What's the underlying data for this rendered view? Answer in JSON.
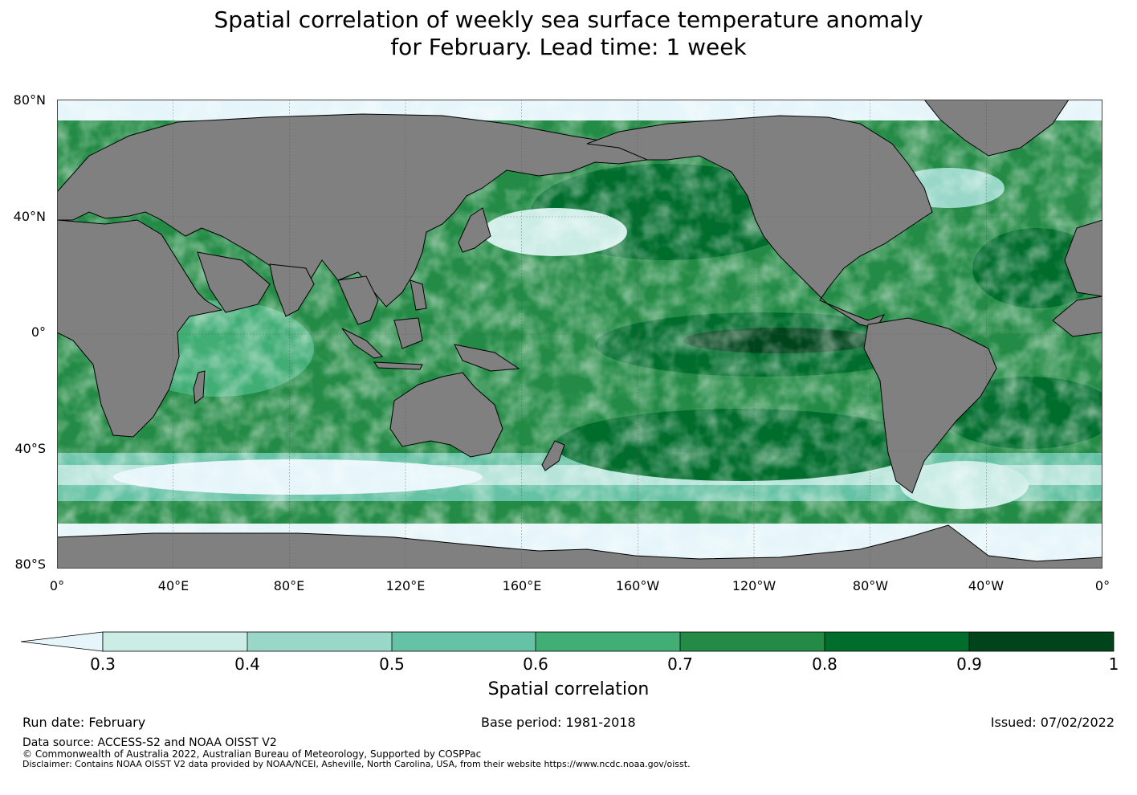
{
  "title_line1": "Spatial correlation of weekly sea surface temperature anomaly",
  "title_line2": "for February. Lead time: 1 week",
  "lat_labels": [
    "80°N",
    "40°N",
    "0°",
    "40°S",
    "80°S"
  ],
  "lon_labels": [
    "0°",
    "40°E",
    "80°E",
    "120°E",
    "160°E",
    "160°W",
    "120°W",
    "80°W",
    "40°W",
    "0°"
  ],
  "colorbar": {
    "label": "Spatial correlation",
    "ticks": [
      "0.3",
      "0.4",
      "0.5",
      "0.6",
      "0.7",
      "0.8",
      "0.9",
      "1"
    ],
    "colors": [
      "#e5f5f9",
      "#ccece6",
      "#99d8c9",
      "#66c2a4",
      "#41ae76",
      "#238b45",
      "#006d2c",
      "#00441b"
    ]
  },
  "land_color": "#808080",
  "footer": {
    "run_date": "Run date: February",
    "base_period": "Base period: 1981-2018",
    "issued": "Issued: 07/02/2022",
    "data_source": "Data source: ACCESS-S2 and NOAA OISST V2",
    "copyright": "© Commonwealth of Australia 2022, Australian Bureau of Meteorology, Supported by COSPPac",
    "disclaimer": "Disclaimer: Contains NOAA OISST V2 data provided by NOAA/NCEI, Asheville, North Carolina, USA, from their website https://www.ncdc.noaa.gov/oisst."
  }
}
